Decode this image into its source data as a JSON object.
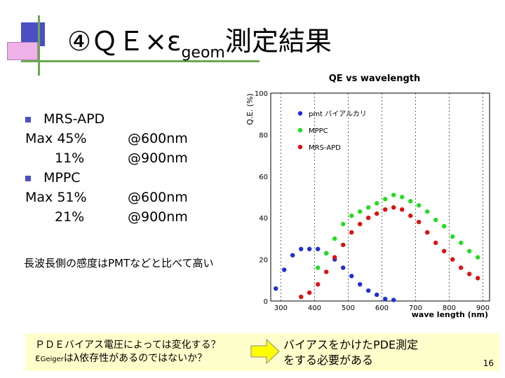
{
  "slide": {
    "title_main": "④ＱＥ×ε",
    "title_sub": "geom",
    "title_tail": "測定結果",
    "bullets": {
      "apd_label": "MRS-APD",
      "apd_max_label": "Max 45%",
      "apd_max_at": "@600nm",
      "apd_low_value": "11%",
      "apd_low_at": "@900nm",
      "mppc_label": "MPPC",
      "mppc_max_label": "Max 51%",
      "mppc_max_at": "@600nm",
      "mppc_low_value": "21%",
      "mppc_low_at": "@900nm"
    },
    "note": "長波長側の感度はPMTなどと比べて高い",
    "box": {
      "left_line1": "ＰＤＥバイアス電圧によっては変化する？",
      "left_line2_eps": "ε",
      "left_line2_sub": "Geiger",
      "left_line2_rest": "はλ依存性があるのではないか？",
      "right_line1": "バイアスをかけたPDE測定",
      "right_line2": "をする必要がある"
    },
    "page_number": "16",
    "colors": {
      "accent_blue": "#4a4fc4",
      "accent_green": "#6aa84f",
      "box_bg": "#ffffcc",
      "arrow": "#ffff00"
    }
  },
  "chart_data": {
    "type": "scatter",
    "title": "QE vs wavelength",
    "xlabel": "wave length (nm)",
    "ylabel": "Q.E. (%)",
    "xlim": [
      270,
      920
    ],
    "ylim": [
      0,
      100
    ],
    "xticks": [
      300,
      400,
      500,
      600,
      700,
      800,
      900
    ],
    "yticks": [
      0,
      20,
      40,
      60,
      80,
      100
    ],
    "legend_position": "top-right",
    "series": [
      {
        "name": "pmt バイアルカリ",
        "color": "#1f2fd6",
        "x": [
          285,
          310,
          335,
          360,
          385,
          410,
          435,
          460,
          485,
          510,
          535,
          560,
          585,
          610,
          635
        ],
        "y": [
          6,
          15,
          22,
          25,
          25,
          25,
          23,
          20,
          16,
          12,
          8,
          5,
          3,
          1,
          0.5
        ]
      },
      {
        "name": "MPPC",
        "color": "#22dd22",
        "x": [
          410,
          435,
          460,
          485,
          510,
          535,
          560,
          585,
          610,
          635,
          660,
          685,
          710,
          735,
          760,
          785,
          810,
          835,
          860,
          885
        ],
        "y": [
          16,
          23,
          30,
          37,
          41,
          43,
          45,
          47,
          49,
          51,
          50,
          48,
          46,
          43,
          39,
          36,
          31,
          28,
          24,
          21
        ]
      },
      {
        "name": "MRS-APD",
        "color": "#dd1111",
        "x": [
          360,
          385,
          410,
          435,
          460,
          485,
          510,
          535,
          560,
          585,
          610,
          635,
          660,
          685,
          710,
          735,
          760,
          785,
          810,
          835,
          860,
          885
        ],
        "y": [
          2,
          4,
          8,
          14,
          21,
          27,
          33,
          37,
          40,
          42,
          44,
          45,
          44,
          41,
          38,
          33,
          28,
          24,
          20,
          16,
          13,
          11
        ]
      }
    ]
  }
}
